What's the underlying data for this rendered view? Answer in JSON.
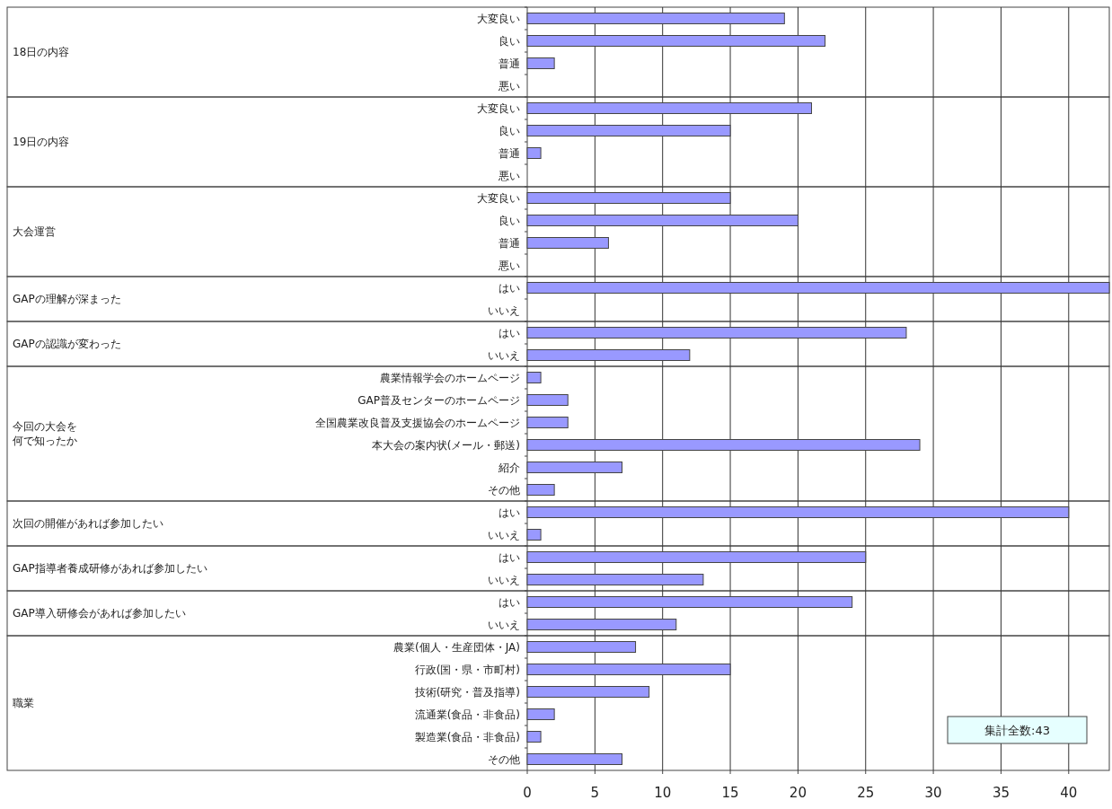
{
  "chart_data": [
    {
      "type": "bar",
      "orientation": "horizontal",
      "ylabel": "18日の内容",
      "categories": [
        "大変良い",
        "良い",
        "普通",
        "悪い"
      ],
      "values": [
        19,
        22,
        2,
        0
      ],
      "color": "#9999ff",
      "xlim": [
        0,
        43
      ],
      "xticks": [
        0,
        5,
        10,
        15,
        20,
        25,
        30,
        35,
        40
      ],
      "grid": "x",
      "tick_labels": "y"
    },
    {
      "type": "bar",
      "orientation": "horizontal",
      "ylabel": "19日の内容",
      "categories": [
        "大変良い",
        "良い",
        "普通",
        "悪い"
      ],
      "values": [
        21,
        15,
        1,
        0
      ],
      "color": "#9999ff",
      "xlim": [
        0,
        43
      ],
      "xticks": [
        0,
        5,
        10,
        15,
        20,
        25,
        30,
        35,
        40
      ],
      "grid": "x",
      "tick_labels": "y"
    },
    {
      "type": "bar",
      "orientation": "horizontal",
      "ylabel": "大会運営",
      "categories": [
        "大変良い",
        "良い",
        "普通",
        "悪い"
      ],
      "values": [
        15,
        20,
        6,
        0
      ],
      "color": "#9999ff",
      "xlim": [
        0,
        43
      ],
      "xticks": [
        0,
        5,
        10,
        15,
        20,
        25,
        30,
        35,
        40
      ],
      "grid": "x",
      "tick_labels": "y"
    },
    {
      "type": "bar",
      "orientation": "horizontal",
      "ylabel": "GAPの理解が深まった",
      "categories": [
        "はい",
        "いいえ"
      ],
      "values": [
        43,
        0
      ],
      "color": "#9999ff",
      "xlim": [
        0,
        43
      ],
      "xticks": [
        0,
        5,
        10,
        15,
        20,
        25,
        30,
        35,
        40
      ],
      "grid": "x",
      "tick_labels": "y"
    },
    {
      "type": "bar",
      "orientation": "horizontal",
      "ylabel": "GAPの認識が変わった",
      "categories": [
        "はい",
        "いいえ"
      ],
      "values": [
        28,
        12
      ],
      "color": "#9999ff",
      "xlim": [
        0,
        43
      ],
      "xticks": [
        0,
        5,
        10,
        15,
        20,
        25,
        30,
        35,
        40
      ],
      "grid": "x",
      "tick_labels": "y"
    },
    {
      "type": "bar",
      "orientation": "horizontal",
      "ylabel": "今回の大会を何で知ったか",
      "categories": [
        "農業情報学会のホームページ",
        "GAP普及センターのホームページ",
        "全国農業改良普及支援協会のホームページ",
        "本大会の案内状(メール・郵送)",
        "紹介",
        "その他"
      ],
      "values": [
        1,
        3,
        3,
        29,
        7,
        2
      ],
      "color": "#9999ff",
      "xlim": [
        0,
        43
      ],
      "xticks": [
        0,
        5,
        10,
        15,
        20,
        25,
        30,
        35,
        40
      ],
      "grid": "x",
      "tick_labels": "y"
    },
    {
      "type": "bar",
      "orientation": "horizontal",
      "ylabel": "次回の開催があれば参加したい",
      "categories": [
        "はい",
        "いいえ"
      ],
      "values": [
        40,
        1
      ],
      "color": "#9999ff",
      "xlim": [
        0,
        43
      ],
      "xticks": [
        0,
        5,
        10,
        15,
        20,
        25,
        30,
        35,
        40
      ],
      "grid": "x",
      "tick_labels": "y"
    },
    {
      "type": "bar",
      "orientation": "horizontal",
      "ylabel": "GAP指導者養成研修があれば参加したい",
      "categories": [
        "はい",
        "いいえ"
      ],
      "values": [
        25,
        13
      ],
      "color": "#9999ff",
      "xlim": [
        0,
        43
      ],
      "xticks": [
        0,
        5,
        10,
        15,
        20,
        25,
        30,
        35,
        40
      ],
      "grid": "x",
      "tick_labels": "y"
    },
    {
      "type": "bar",
      "orientation": "horizontal",
      "ylabel": "GAP導入研修会があれば参加したい",
      "categories": [
        "はい",
        "いいえ"
      ],
      "values": [
        24,
        11
      ],
      "color": "#9999ff",
      "xlim": [
        0,
        43
      ],
      "xticks": [
        0,
        5,
        10,
        15,
        20,
        25,
        30,
        35,
        40
      ],
      "grid": "x",
      "tick_labels": "y"
    },
    {
      "type": "bar",
      "orientation": "horizontal",
      "ylabel": "職業",
      "categories": [
        "農業(個人・生産団体・JA)",
        "行政(国・県・市町村)",
        "技術(研究・普及指導)",
        "流通業(食品・非食品)",
        "製造業(食品・非食品)",
        "その他"
      ],
      "values": [
        8,
        15,
        9,
        2,
        1,
        7
      ],
      "color": "#9999ff",
      "xlim": [
        0,
        43
      ],
      "xticks": [
        0,
        5,
        10,
        15,
        20,
        25,
        30,
        35,
        40
      ],
      "grid": "x",
      "annotations": [
        "集計全数:43"
      ]
    }
  ]
}
